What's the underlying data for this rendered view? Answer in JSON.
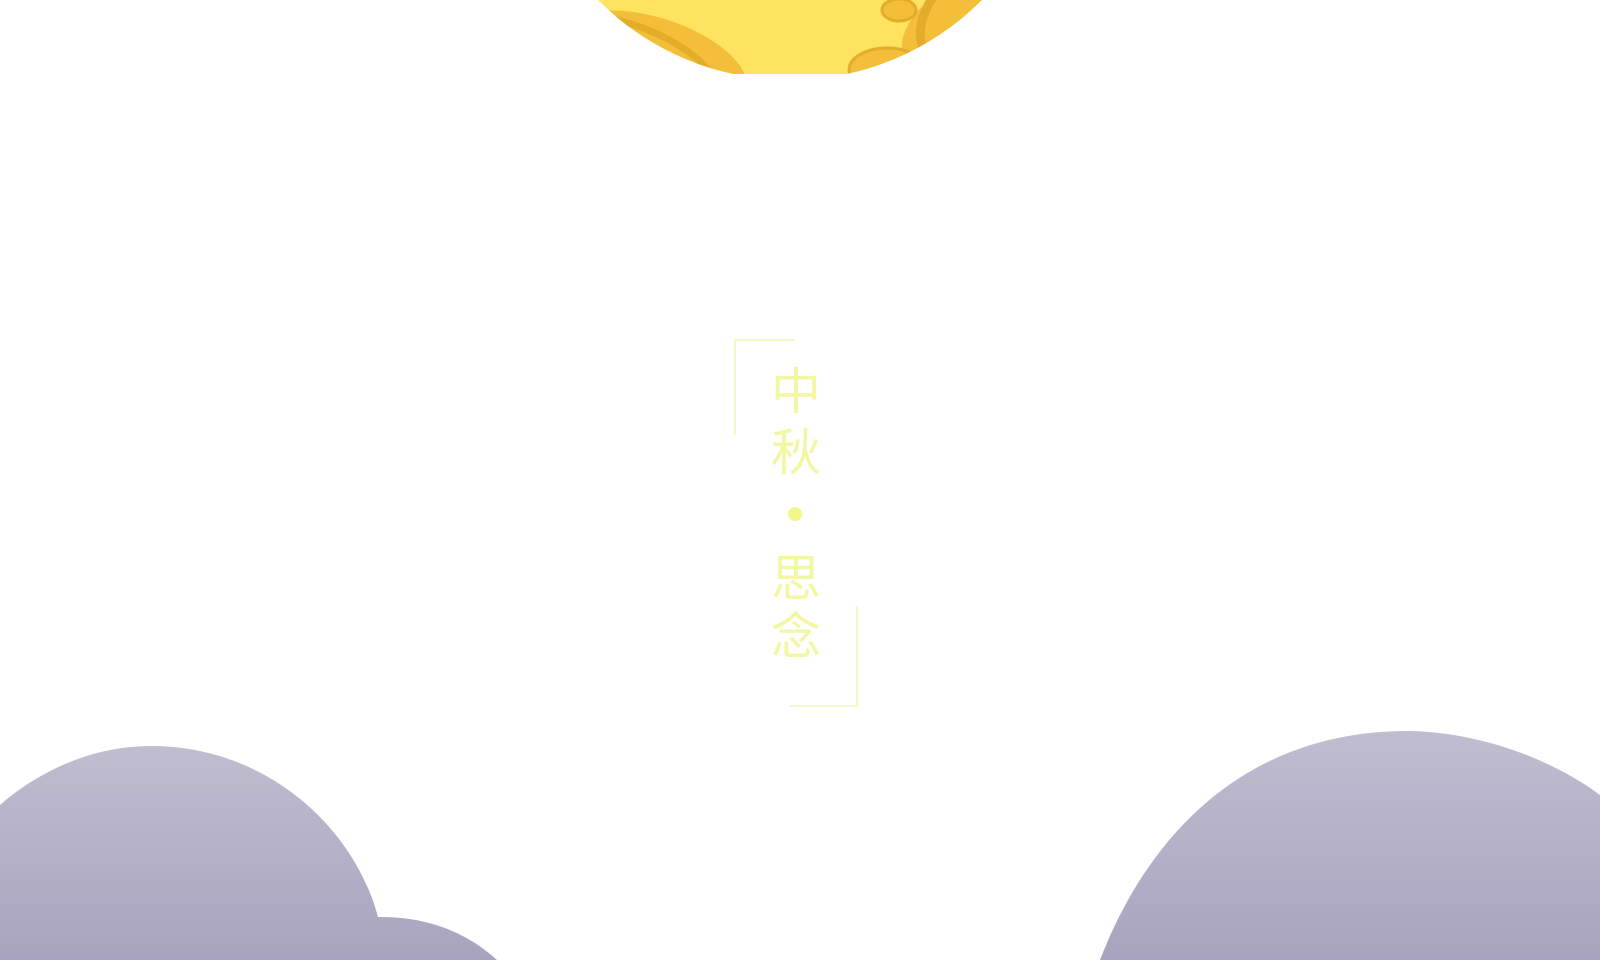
{
  "scene": {
    "background_color": "#ffffff",
    "moon": {
      "base_color": "#fde35f",
      "shade_color": "#f3bf3a",
      "crater_color": "#e7b22e"
    },
    "clouds": {
      "top_color": "#c0bdd0",
      "bottom_color": "#a8a4bf"
    }
  },
  "title": {
    "line1": [
      "中",
      "秋"
    ],
    "separator": "•",
    "line2": [
      "思",
      "念"
    ],
    "text_color": "#f3f7a2",
    "frame_color": "#f4f7c8"
  }
}
